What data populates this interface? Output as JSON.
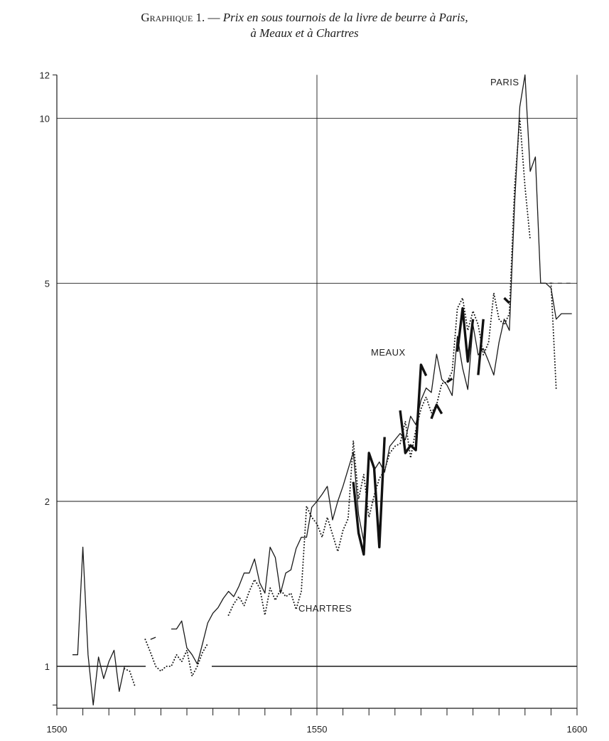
{
  "title": {
    "label": "Graphique 1. —",
    "line1": "Prix en sous tournois de la livre de beurre à Paris,",
    "line2": "à Meaux et à Chartres"
  },
  "chart_data": {
    "type": "line",
    "title": "Graphique 1. — Prix en sous tournois de la livre de beurre à Paris, à Meaux et à Chartres",
    "xlabel": "",
    "ylabel": "",
    "x_scale": "linear",
    "y_scale": "log",
    "xlim": [
      1500,
      1600
    ],
    "ylim": [
      0.8,
      12
    ],
    "x_ticks": [
      1500,
      1550,
      1600
    ],
    "x_minor_ticks": [
      1505,
      1510,
      1515,
      1520,
      1525,
      1530,
      1535,
      1540,
      1545,
      1555,
      1560,
      1565,
      1570,
      1575,
      1580,
      1585,
      1590,
      1595
    ],
    "y_ticks": [
      1,
      2,
      5,
      10,
      12
    ],
    "grid": true,
    "series": [
      {
        "name": "PARIS",
        "style": "thin solid",
        "color": "#1a1a1a",
        "segments": [
          [
            [
              1503,
              1.05
            ],
            [
              1504,
              1.05
            ],
            [
              1505,
              1.65
            ],
            [
              1506,
              1.05
            ],
            [
              1507,
              0.85
            ],
            [
              1508,
              1.04
            ],
            [
              1509,
              0.95
            ],
            [
              1510,
              1.02
            ],
            [
              1511,
              1.07
            ],
            [
              1512,
              0.9
            ],
            [
              1513,
              1.0
            ],
            [
              1514,
              1.0
            ]
          ],
          [
            [
              1518,
              1.12
            ],
            [
              1519,
              1.13
            ]
          ],
          [
            [
              1522,
              1.17
            ],
            [
              1523,
              1.17
            ],
            [
              1524,
              1.21
            ],
            [
              1525,
              1.08
            ],
            [
              1526,
              1.05
            ],
            [
              1527,
              1.01
            ],
            [
              1528,
              1.1
            ],
            [
              1529,
              1.2
            ],
            [
              1530,
              1.25
            ],
            [
              1531,
              1.28
            ],
            [
              1532,
              1.33
            ],
            [
              1533,
              1.37
            ],
            [
              1534,
              1.34
            ],
            [
              1535,
              1.4
            ],
            [
              1536,
              1.48
            ],
            [
              1537,
              1.48
            ],
            [
              1538,
              1.57
            ],
            [
              1539,
              1.42
            ],
            [
              1540,
              1.36
            ],
            [
              1541,
              1.65
            ],
            [
              1542,
              1.58
            ],
            [
              1543,
              1.36
            ],
            [
              1544,
              1.48
            ],
            [
              1545,
              1.5
            ],
            [
              1546,
              1.64
            ],
            [
              1547,
              1.72
            ],
            [
              1548,
              1.72
            ],
            [
              1549,
              1.95
            ],
            [
              1550,
              2.0
            ],
            [
              1551,
              2.06
            ],
            [
              1552,
              2.13
            ],
            [
              1553,
              1.85
            ],
            [
              1554,
              2.0
            ],
            [
              1555,
              2.13
            ],
            [
              1556,
              2.29
            ],
            [
              1557,
              2.46
            ],
            [
              1558,
              1.89
            ],
            [
              1559,
              1.69
            ],
            [
              1560,
              2.46
            ],
            [
              1561,
              2.28
            ],
            [
              1562,
              2.36
            ],
            [
              1563,
              2.26
            ],
            [
              1564,
              2.52
            ],
            [
              1565,
              2.59
            ],
            [
              1566,
              2.66
            ],
            [
              1567,
              2.59
            ],
            [
              1568,
              2.86
            ],
            [
              1569,
              2.76
            ],
            [
              1570,
              3.06
            ],
            [
              1571,
              3.22
            ],
            [
              1572,
              3.16
            ],
            [
              1573,
              3.71
            ],
            [
              1574,
              3.34
            ],
            [
              1575,
              3.26
            ],
            [
              1576,
              3.12
            ],
            [
              1577,
              4.0
            ],
            [
              1578,
              3.5
            ],
            [
              1579,
              3.2
            ],
            [
              1580,
              4.2
            ],
            [
              1581,
              3.7
            ],
            [
              1582,
              3.8
            ],
            [
              1583,
              3.6
            ],
            [
              1584,
              3.4
            ],
            [
              1585,
              3.9
            ],
            [
              1586,
              4.3
            ],
            [
              1587,
              4.1
            ],
            [
              1588,
              7.0
            ],
            [
              1589,
              10.5
            ],
            [
              1590,
              12.0
            ],
            [
              1591,
              8.0
            ],
            [
              1592,
              8.5
            ],
            [
              1593,
              5.0
            ],
            [
              1594,
              5.0
            ],
            [
              1595,
              4.9
            ],
            [
              1596,
              4.3
            ],
            [
              1597,
              4.4
            ],
            [
              1598,
              4.4
            ],
            [
              1599,
              4.4
            ]
          ]
        ]
      },
      {
        "name": "CHARTRES",
        "style": "dotted",
        "color": "#1a1a1a",
        "segments": [
          [
            [
              1513,
              0.99
            ],
            [
              1514,
              0.98
            ],
            [
              1515,
              0.92
            ]
          ],
          [
            [
              1517,
              1.12
            ],
            [
              1518,
              1.06
            ],
            [
              1519,
              1.0
            ],
            [
              1520,
              0.98
            ],
            [
              1521,
              1.0
            ],
            [
              1522,
              1.0
            ],
            [
              1523,
              1.05
            ],
            [
              1524,
              1.02
            ],
            [
              1525,
              1.07
            ],
            [
              1526,
              0.96
            ],
            [
              1527,
              1.0
            ],
            [
              1528,
              1.06
            ],
            [
              1529,
              1.1
            ]
          ],
          [
            [
              1533,
              1.24
            ],
            [
              1534,
              1.3
            ],
            [
              1535,
              1.34
            ],
            [
              1536,
              1.29
            ],
            [
              1537,
              1.37
            ],
            [
              1538,
              1.44
            ],
            [
              1539,
              1.39
            ],
            [
              1540,
              1.24
            ],
            [
              1541,
              1.39
            ],
            [
              1542,
              1.32
            ],
            [
              1543,
              1.38
            ],
            [
              1544,
              1.34
            ],
            [
              1545,
              1.36
            ],
            [
              1546,
              1.27
            ],
            [
              1547,
              1.37
            ],
            [
              1548,
              1.96
            ],
            [
              1549,
              1.87
            ],
            [
              1550,
              1.82
            ],
            [
              1551,
              1.72
            ],
            [
              1552,
              1.87
            ],
            [
              1553,
              1.74
            ],
            [
              1554,
              1.62
            ],
            [
              1555,
              1.77
            ],
            [
              1556,
              1.86
            ],
            [
              1557,
              2.58
            ],
            [
              1558,
              2.02
            ],
            [
              1559,
              2.24
            ],
            [
              1560,
              1.87
            ],
            [
              1561,
              2.05
            ],
            [
              1562,
              2.2
            ],
            [
              1563,
              2.28
            ],
            [
              1564,
              2.45
            ],
            [
              1565,
              2.52
            ],
            [
              1566,
              2.55
            ],
            [
              1567,
              2.8
            ],
            [
              1568,
              2.4
            ],
            [
              1569,
              2.7
            ],
            [
              1570,
              2.95
            ],
            [
              1571,
              3.1
            ],
            [
              1572,
              2.9
            ],
            [
              1573,
              3.0
            ],
            [
              1574,
              3.28
            ],
            [
              1575,
              3.3
            ],
            [
              1576,
              3.45
            ],
            [
              1577,
              4.5
            ],
            [
              1578,
              4.7
            ],
            [
              1579,
              4.1
            ],
            [
              1580,
              4.45
            ],
            [
              1581,
              4.2
            ],
            [
              1582,
              3.7
            ],
            [
              1583,
              3.9
            ],
            [
              1584,
              4.8
            ],
            [
              1585,
              4.3
            ],
            [
              1586,
              4.2
            ],
            [
              1587,
              4.4
            ],
            [
              1588,
              7.5
            ],
            [
              1589,
              10.0
            ],
            [
              1590,
              7.5
            ],
            [
              1591,
              6.0
            ]
          ],
          [
            [
              1595,
              5.0
            ],
            [
              1596,
              3.2
            ]
          ]
        ]
      },
      {
        "name": "MEAUX",
        "style": "thick solid",
        "color": "#111111",
        "segments": [
          [
            [
              1557,
              2.17
            ],
            [
              1558,
              1.75
            ],
            [
              1559,
              1.6
            ],
            [
              1560,
              2.45
            ],
            [
              1561,
              2.3
            ],
            [
              1562,
              1.65
            ],
            [
              1563,
              2.62
            ]
          ],
          [
            [
              1566,
              2.93
            ],
            [
              1567,
              2.45
            ],
            [
              1568,
              2.53
            ],
            [
              1569,
              2.48
            ],
            [
              1570,
              3.55
            ],
            [
              1571,
              3.39
            ]
          ],
          [
            [
              1572,
              2.83
            ],
            [
              1573,
              3.0
            ],
            [
              1574,
              2.89
            ]
          ],
          [
            [
              1575,
              3.3
            ],
            [
              1576,
              3.35
            ]
          ],
          [
            [
              1577,
              3.75
            ],
            [
              1578,
              4.5
            ],
            [
              1579,
              3.6
            ],
            [
              1580,
              4.3
            ]
          ],
          [
            [
              1581,
              3.4
            ],
            [
              1582,
              4.3
            ]
          ],
          [
            [
              1586,
              4.7
            ],
            [
              1587,
              4.6
            ]
          ]
        ]
      },
      {
        "name": "",
        "style": "dashed",
        "color": "#1a1a1a",
        "segments": [
          [
            [
              1593,
              5.0
            ],
            [
              1599,
              5.0
            ]
          ]
        ]
      }
    ],
    "annotations": [
      "PARIS",
      "MEAUX",
      "CHARTRES"
    ]
  }
}
